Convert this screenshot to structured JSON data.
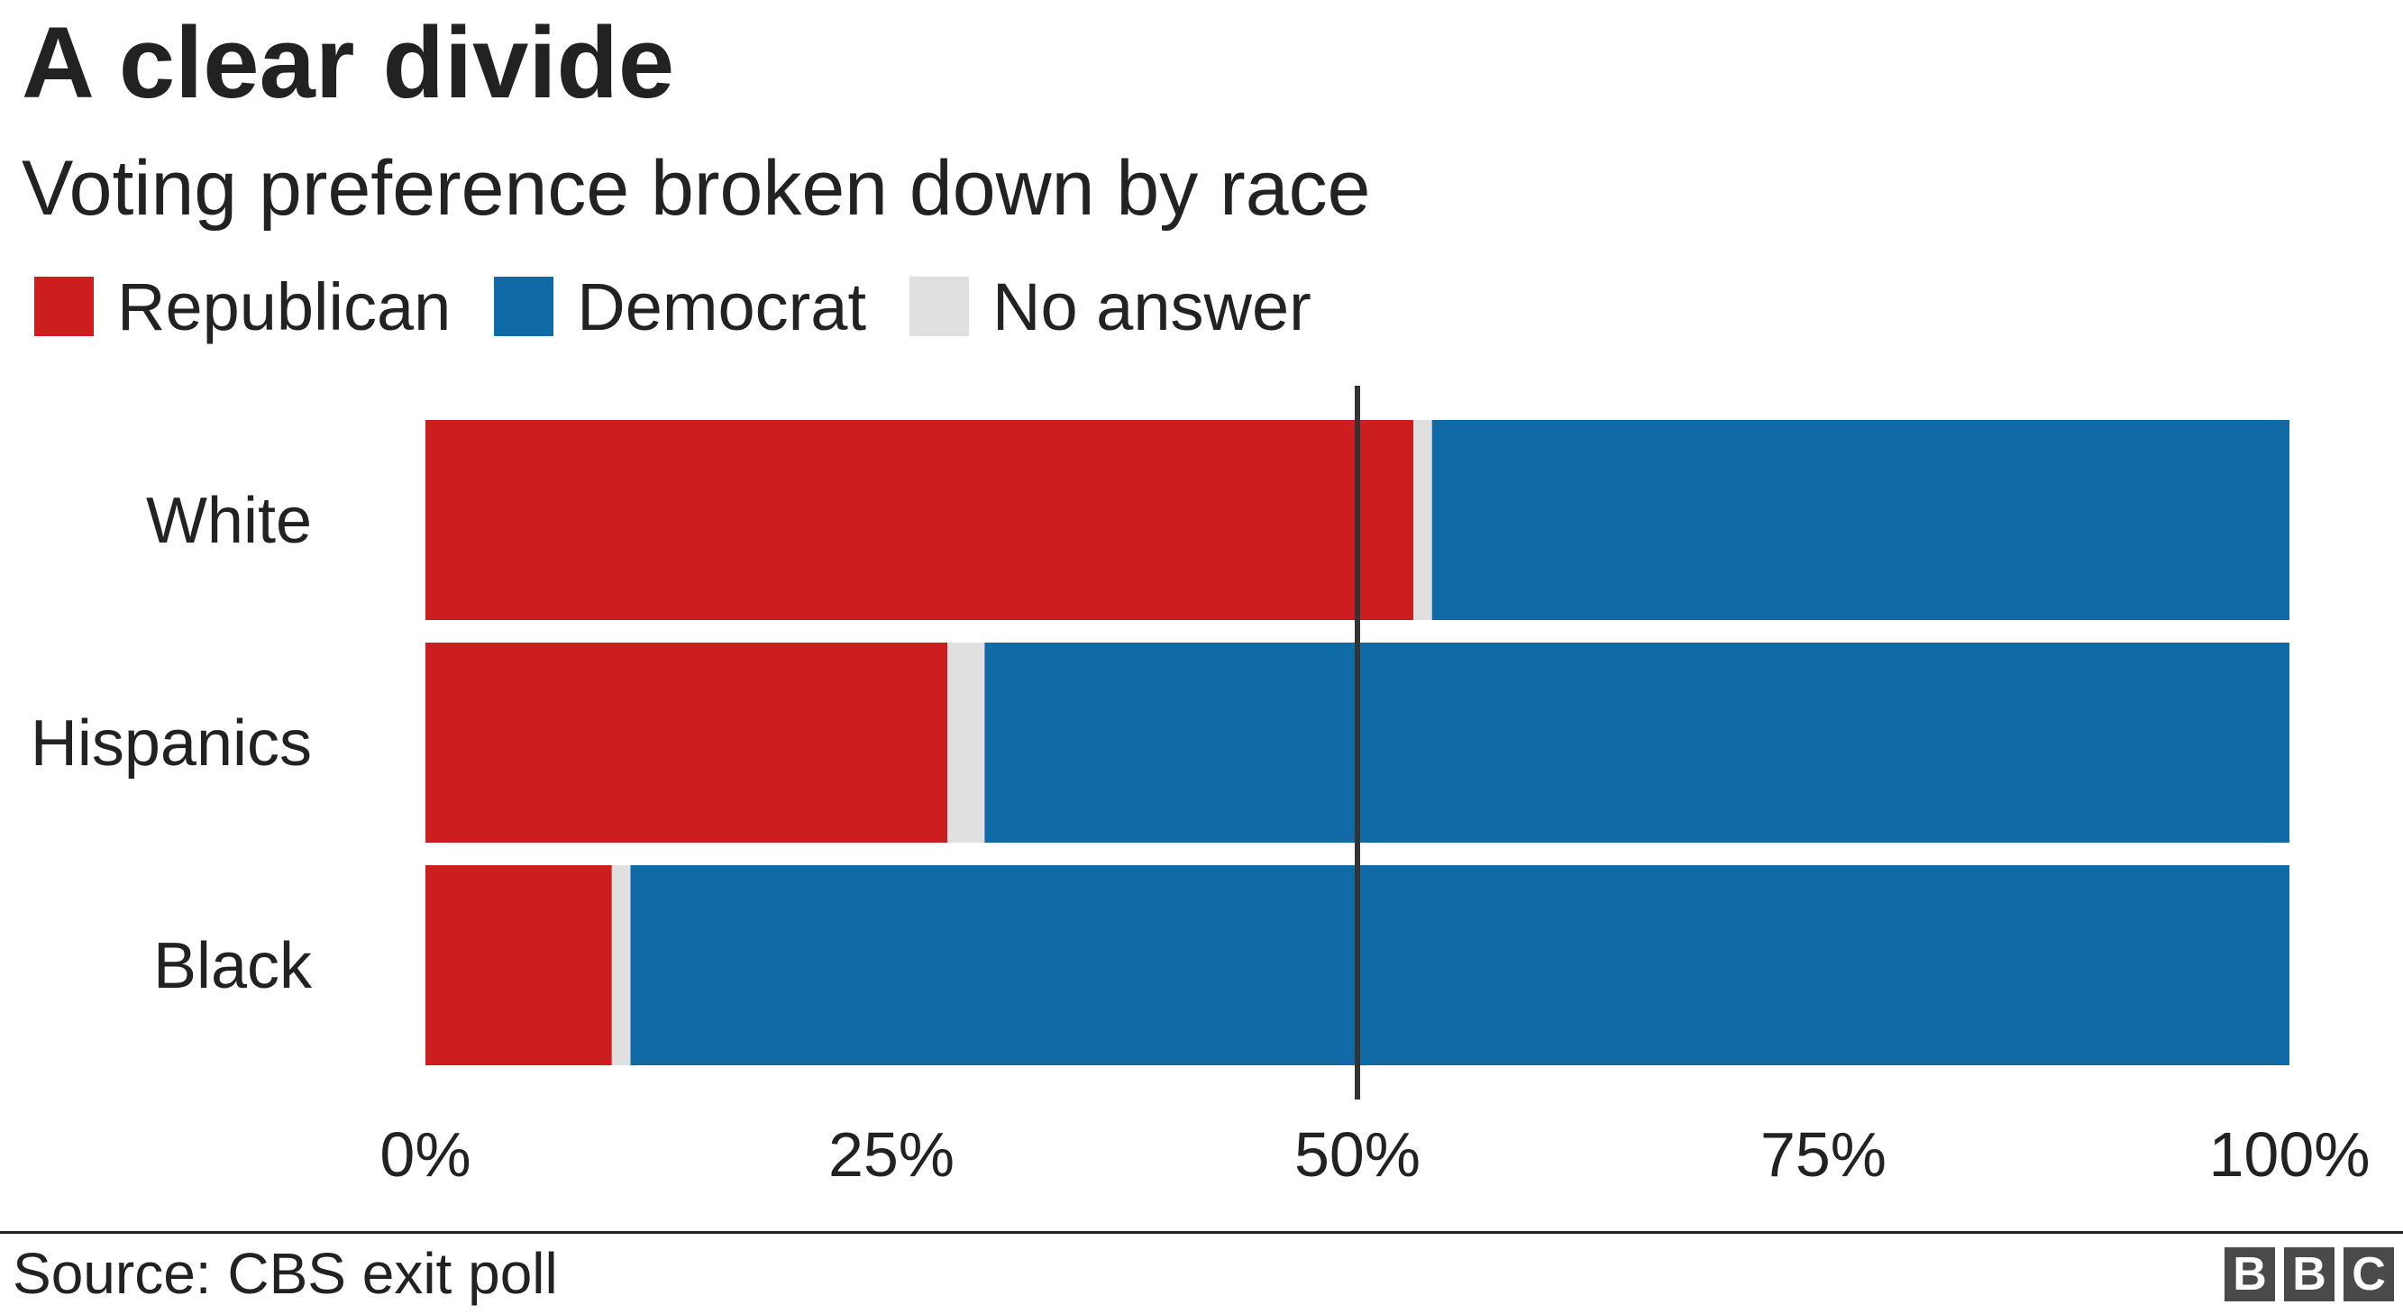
{
  "title": "A clear divide",
  "subtitle": "Voting preference broken down by race",
  "source": "Source: CBS exit poll",
  "logo_text": "BBC",
  "legend": [
    {
      "label": "Republican",
      "color": "#cc1e1e"
    },
    {
      "label": "Democrat",
      "color": "#0f6aa6"
    },
    {
      "label": "No answer",
      "color": "#e0e0e0"
    }
  ],
  "chart_data": {
    "type": "bar",
    "orientation": "horizontal",
    "stacked": true,
    "title": "A clear divide",
    "subtitle": "Voting preference broken down by race",
    "categories": [
      "White",
      "Hispanics",
      "Black"
    ],
    "series": [
      {
        "name": "Republican",
        "color": "#cc1e1e",
        "values": [
          53,
          28,
          10
        ]
      },
      {
        "name": "No answer",
        "color": "#e0e0e0",
        "values": [
          1,
          2,
          1
        ]
      },
      {
        "name": "Democrat",
        "color": "#0f6aa6",
        "values": [
          46,
          70,
          89
        ]
      }
    ],
    "xlim": [
      0,
      100
    ],
    "xticks": [
      "0%",
      "25%",
      "50%",
      "75%",
      "100%"
    ],
    "reference_line": 50,
    "xlabel": "",
    "ylabel": "",
    "grid": false,
    "legend_position": "top-left"
  }
}
